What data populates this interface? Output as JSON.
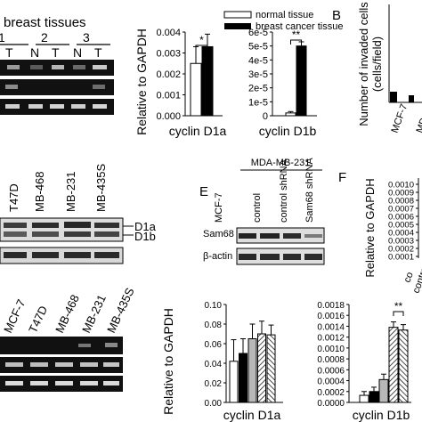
{
  "panelA": {
    "title": "breast tissues",
    "pair_numbers": [
      "1",
      "2",
      "3"
    ],
    "lane_labels": [
      "T",
      "N",
      "T",
      "N",
      "T"
    ]
  },
  "panelA_legend": {
    "normal": "normal tissue",
    "cancer": "breast cancer tissue"
  },
  "panelB": {
    "letter": "B",
    "ylabel_line1": "Number of invaded cells",
    "ylabel_line2": "(cells/field)",
    "x_labels": [
      "MCF-7",
      "MD"
    ]
  },
  "panelC": {
    "lanes": [
      "T47D",
      "MB-468",
      "MB-231",
      "MB-435S"
    ],
    "band_labels": [
      "D1a",
      "D1b"
    ]
  },
  "panelD_bottom": {
    "lanes": [
      "MCF-7",
      "T47D",
      "MB-468",
      "MB-231",
      "MB-435S"
    ]
  },
  "panelE": {
    "letter": "E",
    "group": "MDA-MB-231",
    "lanes": [
      "MCF-7",
      "control",
      "control shRNA",
      "Sam68 shRNA"
    ],
    "rows": [
      "Sam68",
      "β-actin"
    ]
  },
  "panelF": {
    "letter": "F",
    "ylabel": "Relative to GAPDH",
    "yticks": [
      "0.0010",
      "0.0009",
      "0.0008",
      "0.0007",
      "0.0006",
      "0.0005",
      "0.0004",
      "0.0003",
      "0.0002",
      "0.0001"
    ],
    "xlabels": [
      "co",
      "contro"
    ]
  },
  "chart_data": [
    {
      "type": "bar",
      "ylabel": "Relative to GAPDH",
      "xlabel": "cyclin D1a",
      "ylim": [
        0,
        0.004
      ],
      "yticks": [
        "0.004",
        "0.003",
        "0.002",
        "0.001",
        "0.000"
      ],
      "categories": [
        "normal tissue",
        "breast cancer tissue"
      ],
      "values": [
        0.0025,
        0.0033
      ],
      "errors": [
        0.0008,
        0.0006
      ],
      "significance": "*"
    },
    {
      "type": "bar",
      "xlabel": "cyclin D1b",
      "ylim": [
        0,
        6e-05
      ],
      "yticks": [
        "6e-5",
        "5e-5",
        "4e-5",
        "3e-5",
        "2e-5",
        "1e-5",
        "0"
      ],
      "categories": [
        "normal tissue",
        "breast cancer tissue"
      ],
      "values": [
        2e-06,
        5e-05
      ],
      "errors": [
        1e-06,
        3e-06
      ],
      "significance": "**"
    },
    {
      "type": "bar",
      "ylabel": "Relative to GAPDH",
      "xlabel": "cyclin D1a",
      "ylim": [
        0,
        0.1
      ],
      "yticks": [
        "0.10",
        "0.08",
        "0.06",
        "0.04",
        "0.02",
        "0.00"
      ],
      "categories": [
        "MCF-7",
        "T47D",
        "MB-468",
        "MB-231",
        "MB-435S"
      ],
      "values": [
        0.042,
        0.05,
        0.065,
        0.07,
        0.069
      ],
      "errors": [
        0.022,
        0.015,
        0.015,
        0.013,
        0.01
      ]
    },
    {
      "type": "bar",
      "xlabel": "cyclin D1b",
      "ylim": [
        0,
        0.0018
      ],
      "yticks": [
        "0.0018",
        "0.0016",
        "0.0014",
        "0.0012",
        "0.0010",
        "0.0008",
        "0.0006",
        "0.0004",
        "0.0002",
        "0.0000"
      ],
      "categories": [
        "MCF-7",
        "T47D",
        "MB-468",
        "MB-231",
        "MB-435S"
      ],
      "values": [
        0.00013,
        0.0002,
        0.00042,
        0.00138,
        0.00133
      ],
      "errors": [
        7e-05,
        8e-05,
        0.0001,
        0.0001,
        0.0001
      ],
      "significance": "**"
    }
  ]
}
